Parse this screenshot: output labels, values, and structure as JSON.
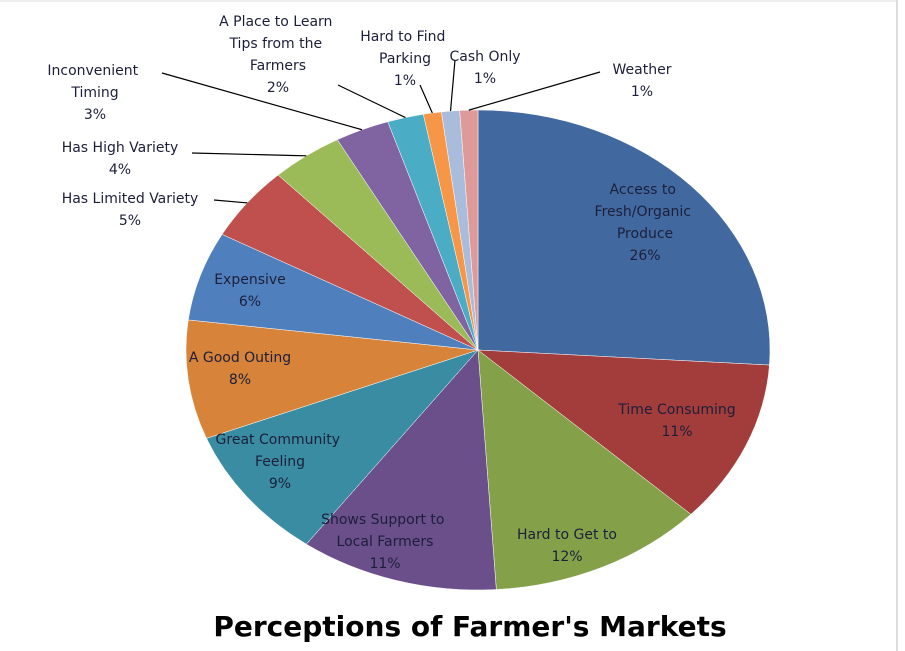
{
  "chart_data": {
    "type": "pie",
    "title": "Perceptions of Farmer's Markets",
    "categories": [
      "Access to Fresh/Organic Produce",
      "Time Consuming",
      "Hard to Get to",
      "Shows Support to Local Farmers",
      "Great Community Feeling",
      "A Good Outing",
      "Expensive",
      "Has Limited Variety",
      "Has High Variety",
      "Inconvenient Timing",
      "A Place to Learn Tips from the Farmers",
      "Hard to Find Parking",
      "Cash Only",
      "Weather"
    ],
    "values": [
      26,
      11,
      12,
      11,
      9,
      8,
      6,
      5,
      4,
      3,
      2,
      1,
      1,
      1
    ],
    "value_labels": [
      "26%",
      "11%",
      "12%",
      "11%",
      "9%",
      "8%",
      "6%",
      "5%",
      "4%",
      "3%",
      "2%",
      "1%",
      "1%",
      "1%"
    ],
    "colors": [
      "#4169a0",
      "#a33d3b",
      "#84a14a",
      "#6a4f8b",
      "#3a8ca2",
      "#d8833a",
      "#4f80bd",
      "#c0504d",
      "#9bbb59",
      "#8064a2",
      "#4bacc6",
      "#f79646",
      "#a9bcdb",
      "#dd9a98"
    ]
  }
}
